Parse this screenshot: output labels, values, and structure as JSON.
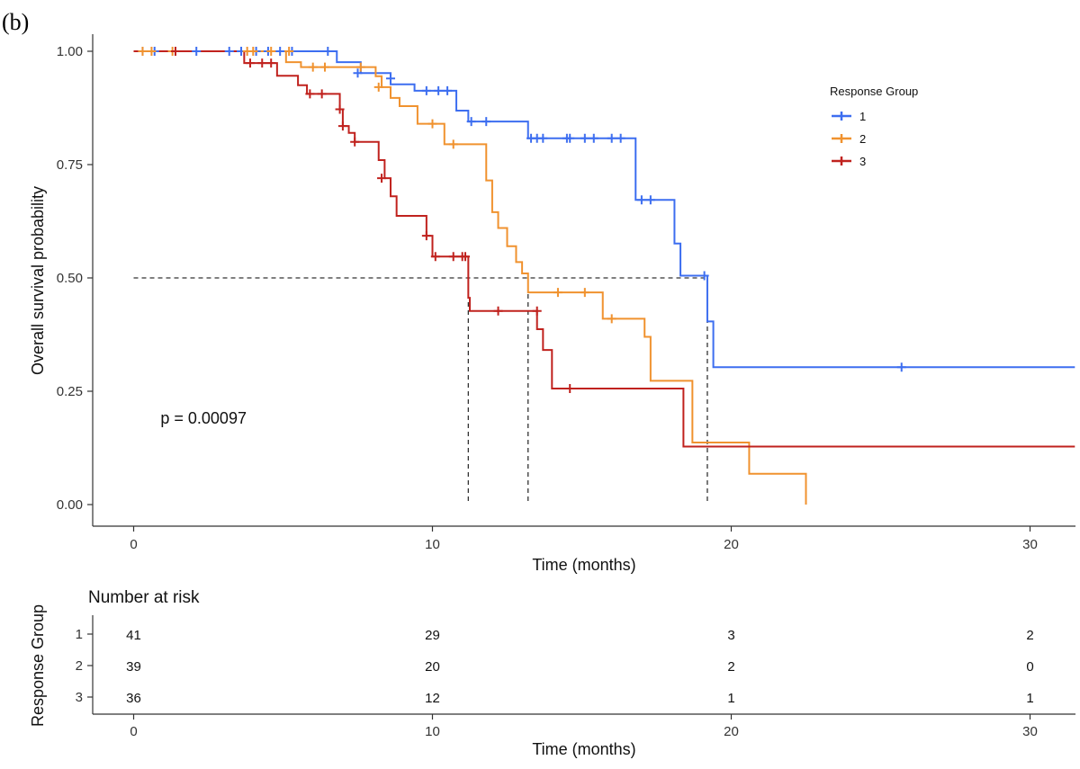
{
  "panel_label": "(b)",
  "chart_data": {
    "type": "line",
    "subtype": "kaplan-meier",
    "xlabel": "Time (months)",
    "ylabel": "Overall survival probability",
    "xlim": [
      -0.7,
      31.5
    ],
    "ylim": [
      -0.05,
      1.04
    ],
    "x_ticks": [
      0,
      10,
      20,
      30
    ],
    "x_tick_labels": [
      "0",
      "10",
      "20",
      "30"
    ],
    "y_ticks": [
      0,
      0.25,
      0.5,
      0.75,
      1
    ],
    "y_tick_labels": [
      "0.00",
      "0.25",
      "0.50",
      "0.75",
      "1.00"
    ],
    "grid": false,
    "annotation": "p = 0.00097",
    "annotation_position": {
      "x": 0.9,
      "y": 0.19
    },
    "median_line": {
      "y": 0.5,
      "x_start": 0,
      "x_end": 19.2,
      "medians": [
        19.2,
        13.2,
        11.2
      ]
    },
    "legend": {
      "title": "Response Group",
      "position": "right"
    },
    "series": [
      {
        "name": "1",
        "color": "#3d6ef0",
        "steps": [
          [
            0,
            1
          ],
          [
            6.8,
            0.976
          ],
          [
            7.1,
            0.976
          ],
          [
            7.6,
            0.952
          ],
          [
            8.6,
            0.927
          ],
          [
            9.4,
            0.913
          ],
          [
            10.8,
            0.869
          ],
          [
            11.2,
            0.845
          ],
          [
            13.2,
            0.808
          ],
          [
            16.8,
            0.672
          ],
          [
            18.1,
            0.576
          ],
          [
            18.3,
            0.505
          ],
          [
            19.2,
            0.404
          ],
          [
            19.4,
            0.303
          ],
          [
            31.5,
            0.303
          ]
        ],
        "censors": [
          [
            0.3,
            1
          ],
          [
            0.7,
            1
          ],
          [
            1.4,
            1
          ],
          [
            2.1,
            1
          ],
          [
            3.2,
            1
          ],
          [
            3.6,
            1
          ],
          [
            4.1,
            1
          ],
          [
            4.5,
            1
          ],
          [
            4.9,
            1
          ],
          [
            5.3,
            1
          ],
          [
            6.5,
            1
          ],
          [
            7.5,
            0.952
          ],
          [
            8.6,
            0.94
          ],
          [
            9.8,
            0.913
          ],
          [
            10.2,
            0.913
          ],
          [
            10.5,
            0.913
          ],
          [
            11.3,
            0.845
          ],
          [
            11.8,
            0.845
          ],
          [
            13.3,
            0.808
          ],
          [
            13.5,
            0.808
          ],
          [
            13.7,
            0.808
          ],
          [
            14.5,
            0.808
          ],
          [
            14.6,
            0.808
          ],
          [
            15.1,
            0.808
          ],
          [
            15.4,
            0.808
          ],
          [
            16.0,
            0.808
          ],
          [
            16.3,
            0.808
          ],
          [
            17.0,
            0.672
          ],
          [
            17.3,
            0.672
          ],
          [
            19.1,
            0.505
          ],
          [
            25.7,
            0.303
          ]
        ]
      },
      {
        "name": "2",
        "color": "#f0922f",
        "steps": [
          [
            0,
            1
          ],
          [
            5.1,
            0.976
          ],
          [
            5.6,
            0.965
          ],
          [
            8.1,
            0.945
          ],
          [
            8.3,
            0.921
          ],
          [
            8.6,
            0.897
          ],
          [
            8.9,
            0.879
          ],
          [
            9.5,
            0.84
          ],
          [
            10.4,
            0.795
          ],
          [
            11.8,
            0.715
          ],
          [
            12.0,
            0.645
          ],
          [
            12.2,
            0.61
          ],
          [
            12.5,
            0.57
          ],
          [
            12.8,
            0.535
          ],
          [
            13.0,
            0.51
          ],
          [
            13.2,
            0.468
          ],
          [
            15.7,
            0.41
          ],
          [
            17.1,
            0.37
          ],
          [
            17.3,
            0.273
          ],
          [
            18.7,
            0.137
          ],
          [
            20.6,
            0.068
          ],
          [
            22.5,
            0.0
          ]
        ],
        "censors": [
          [
            0.3,
            1
          ],
          [
            0.6,
            1
          ],
          [
            1.3,
            1
          ],
          [
            3.8,
            1
          ],
          [
            4.0,
            1
          ],
          [
            4.6,
            1
          ],
          [
            5.2,
            1
          ],
          [
            6.0,
            0.965
          ],
          [
            6.4,
            0.965
          ],
          [
            7.6,
            0.965
          ],
          [
            8.2,
            0.921
          ],
          [
            10.0,
            0.84
          ],
          [
            10.7,
            0.795
          ],
          [
            14.2,
            0.468
          ],
          [
            15.1,
            0.468
          ],
          [
            16.0,
            0.41
          ]
        ],
        "drop_to_zero": true
      },
      {
        "name": "3",
        "color": "#c0221e",
        "steps": [
          [
            0,
            1
          ],
          [
            3.7,
            0.974
          ],
          [
            4.8,
            0.946
          ],
          [
            5.5,
            0.925
          ],
          [
            5.8,
            0.906
          ],
          [
            6.9,
            0.872
          ],
          [
            7.0,
            0.835
          ],
          [
            7.2,
            0.82
          ],
          [
            7.4,
            0.8
          ],
          [
            8.2,
            0.76
          ],
          [
            8.4,
            0.72
          ],
          [
            8.6,
            0.68
          ],
          [
            8.8,
            0.637
          ],
          [
            9.8,
            0.593
          ],
          [
            10.0,
            0.547
          ],
          [
            11.2,
            0.456
          ],
          [
            11.25,
            0.427
          ],
          [
            13.5,
            0.387
          ],
          [
            13.7,
            0.341
          ],
          [
            14.0,
            0.256
          ],
          [
            18.4,
            0.128
          ],
          [
            31.5,
            0.128
          ]
        ],
        "censors": [
          [
            1.4,
            1
          ],
          [
            3.9,
            0.974
          ],
          [
            4.3,
            0.974
          ],
          [
            4.6,
            0.974
          ],
          [
            5.9,
            0.906
          ],
          [
            6.3,
            0.906
          ],
          [
            6.9,
            0.872
          ],
          [
            7.0,
            0.835
          ],
          [
            7.4,
            0.8
          ],
          [
            8.3,
            0.72
          ],
          [
            9.8,
            0.593
          ],
          [
            10.1,
            0.547
          ],
          [
            10.7,
            0.547
          ],
          [
            11.0,
            0.547
          ],
          [
            11.1,
            0.547
          ],
          [
            12.2,
            0.427
          ],
          [
            13.5,
            0.427
          ],
          [
            14.6,
            0.256
          ]
        ]
      }
    ]
  },
  "risk_table": {
    "title": "Number at risk",
    "ylabel": "Response Group",
    "xlabel": "Time (months)",
    "time_points": [
      0,
      10,
      20,
      30
    ],
    "tick_labels": [
      "0",
      "10",
      "20",
      "30"
    ],
    "groups": [
      {
        "name": "1",
        "color": "#3d6ef0",
        "counts": [
          "41",
          "29",
          "3",
          "2"
        ]
      },
      {
        "name": "2",
        "color": "#f0922f",
        "counts": [
          "39",
          "20",
          "2",
          "0"
        ]
      },
      {
        "name": "3",
        "color": "#c0221e",
        "counts": [
          "36",
          "12",
          "1",
          "1"
        ]
      }
    ]
  }
}
